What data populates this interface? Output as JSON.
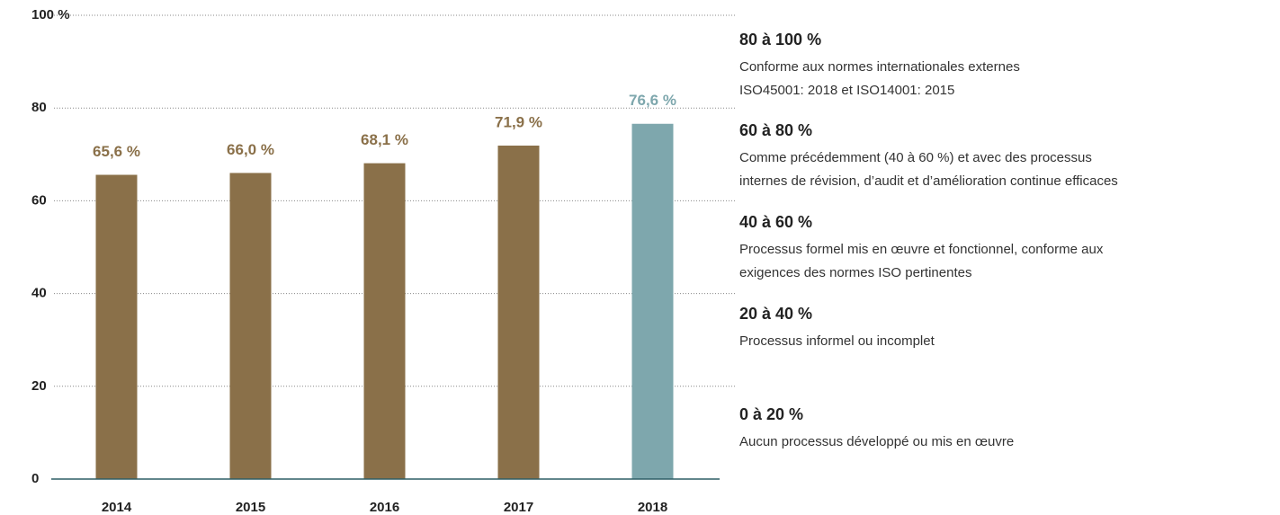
{
  "chart_data": {
    "type": "bar",
    "categories": [
      "2014",
      "2015",
      "2016",
      "2017",
      "2018"
    ],
    "values": [
      65.6,
      66.0,
      68.1,
      71.9,
      76.6
    ],
    "value_labels": [
      "65,6 %",
      "66,0 %",
      "68,1 %",
      "71,9 %",
      "76,6 %"
    ],
    "colors": [
      "#8a7049",
      "#8a7049",
      "#8a7049",
      "#8a7049",
      "#7ea7ad"
    ],
    "ylim": [
      0,
      100
    ],
    "yticks": [
      0,
      20,
      40,
      60,
      80,
      {
        "value": 100,
        "label": "100 %"
      }
    ],
    "grid": true,
    "bands": [
      {
        "label": "80 à 100 %",
        "lines": [
          "Conforme aux normes internationales externes",
          "ISO45001: 2018 et ISO14001: 2015"
        ]
      },
      {
        "label": "60 à 80 %",
        "lines": [
          "Comme précédemment (40 à 60 %) et avec des processus",
          "internes de révision, d’audit et d’amélioration continue efficaces"
        ]
      },
      {
        "label": "40 à 60 %",
        "lines": [
          "Processus formel mis en œuvre et fonctionnel, conforme aux",
          "exigences des normes ISO pertinentes"
        ]
      },
      {
        "label": "20 à 40 %",
        "lines": [
          "Processus informel ou incomplet"
        ]
      },
      {
        "label": "0 à 20 %",
        "lines": [
          "Aucun processus développé ou mis en œuvre"
        ]
      }
    ]
  }
}
